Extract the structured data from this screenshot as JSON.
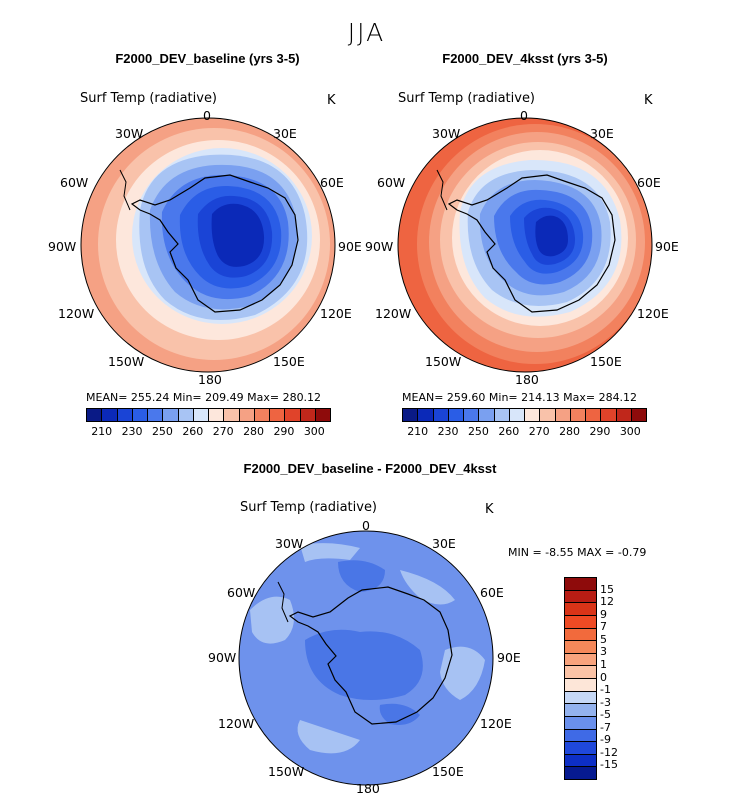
{
  "season": "JJA",
  "map1": {
    "title": "F2000_DEV_baseline (yrs 3-5)",
    "variable": "Surf Temp (radiative)",
    "unit": "K",
    "stats": "MEAN= 255.24   Min= 209.49   Max= 280.12",
    "lon_labels": [
      "0",
      "30E",
      "60E",
      "90E",
      "120E",
      "150E",
      "180",
      "150W",
      "120W",
      "90W",
      "60W",
      "30W"
    ]
  },
  "map2": {
    "title": "F2000_DEV_4ksst (yrs 3-5)",
    "variable": "Surf Temp (radiative)",
    "unit": "K",
    "stats": "MEAN= 259.60   Min= 214.13   Max= 284.12",
    "lon_labels": [
      "0",
      "30E",
      "60E",
      "90E",
      "120E",
      "150E",
      "180",
      "150W",
      "120W",
      "90W",
      "60W",
      "30W"
    ]
  },
  "colorbar_abs": {
    "ticks": [
      "210",
      "230",
      "250",
      "260",
      "270",
      "280",
      "290",
      "300"
    ],
    "colors": [
      "#0a1a86",
      "#0b29b8",
      "#1a44d6",
      "#2a5de6",
      "#4a78ec",
      "#7aa0f0",
      "#a8c4f4",
      "#d8e6fa",
      "#fde7dc",
      "#f9c2aa",
      "#f5a184",
      "#f2815e",
      "#ee6441",
      "#e0432a",
      "#c0271b",
      "#8e0b0b"
    ]
  },
  "diff": {
    "title": "F2000_DEV_baseline - F2000_DEV_4ksst",
    "variable": "Surf Temp (radiative)",
    "unit": "K",
    "minmax": "MIN =   -8.55  MAX =   -0.79",
    "lon_labels": [
      "0",
      "30E",
      "60E",
      "90E",
      "120E",
      "150E",
      "180",
      "150W",
      "120W",
      "90W",
      "60W",
      "30W"
    ],
    "colorbar_ticks": [
      "15",
      "12",
      "9",
      "7",
      "5",
      "3",
      "1",
      "0",
      "-1",
      "-3",
      "-5",
      "-7",
      "-9",
      "-12",
      "-15"
    ],
    "colorbar_colors": [
      "#8e0b0b",
      "#b81d14",
      "#d93418",
      "#ee4a24",
      "#f26a3c",
      "#f5885a",
      "#f8a37d",
      "#fbc3a6",
      "#fde6d8",
      "#c6d8f6",
      "#93b2ee",
      "#6a90ec",
      "#3f6ae6",
      "#1f48db",
      "#0d2fc6",
      "#061a90"
    ]
  },
  "colors": {
    "land_outline": "#000000",
    "cold_core": "#0c2db0",
    "diff_base": "#6e92ec",
    "diff_dark": "#4a76e6",
    "diff_light": "#a7c2f3"
  }
}
